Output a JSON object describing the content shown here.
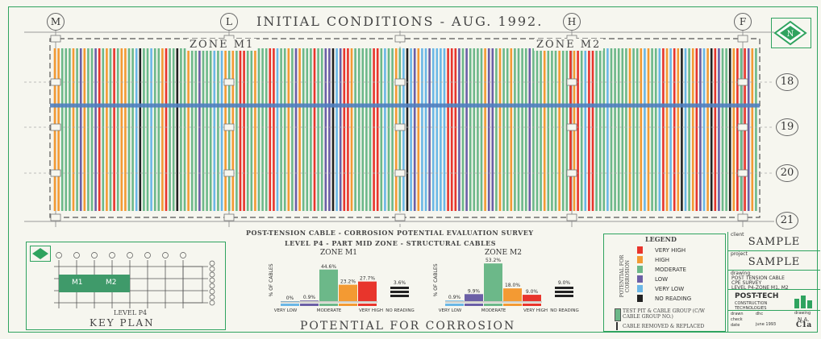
{
  "title": "INITIAL CONDITIONS - AUG. 1992.",
  "grid_columns": [
    "M",
    "L",
    "H",
    "F"
  ],
  "grid_rows": [
    "18",
    "19",
    "20",
    "21"
  ],
  "zones": [
    "ZONE M1",
    "ZONE M2"
  ],
  "survey_title_1": "POST-TENSION CABLE - CORROSION POTENTIAL EVALUATION SURVEY",
  "survey_title_2": "LEVEL P4 - PART MID ZONE - STRUCTURAL CABLES",
  "chart_footer": "POTENTIAL FOR CORROSION",
  "colors": {
    "very_high": "#e8352c",
    "high": "#f39a33",
    "moderate": "#6cb889",
    "low": "#6b5fa6",
    "very_low": "#6ab7e6",
    "no_reading": "#222222",
    "border": "#2fa35f"
  },
  "chart_data": [
    {
      "type": "bar",
      "title": "ZONE M1",
      "ylabel": "% OF CABLES",
      "series_keys": [
        "very_low",
        "low",
        "moderate",
        "high",
        "very_high",
        "no_reading"
      ],
      "values": [
        0,
        0.9,
        44.6,
        23.2,
        27.7,
        3.6
      ],
      "value_labels": [
        "0%",
        "0.9%",
        "44.6%",
        "23.2%",
        "27.7%",
        "3.6%"
      ],
      "x_labels": [
        "VERY LOW",
        "MODERATE",
        "VERY HIGH",
        "NO READING"
      ],
      "ylim": [
        0,
        60
      ]
    },
    {
      "type": "bar",
      "title": "ZONE M2",
      "ylabel": "% OF CABLES",
      "series_keys": [
        "very_low",
        "low",
        "moderate",
        "high",
        "very_high",
        "no_reading"
      ],
      "values": [
        0.9,
        9.9,
        53.2,
        18.0,
        9.0,
        9.0
      ],
      "value_labels": [
        "0.9%",
        "9.9%",
        "53.2%",
        "18.0%",
        "9.0%",
        "9.0%"
      ],
      "x_labels": [
        "VERY LOW",
        "MODERATE",
        "VERY HIGH",
        "NO READING"
      ],
      "ylim": [
        0,
        60
      ]
    }
  ],
  "legend": {
    "title": "LEGEND",
    "side_label": "POTENTIAL FOR CORROSION",
    "items": [
      {
        "key": "very_high",
        "label": "VERY HIGH"
      },
      {
        "key": "high",
        "label": "HIGH"
      },
      {
        "key": "moderate",
        "label": "MODERATE"
      },
      {
        "key": "low",
        "label": "LOW"
      },
      {
        "key": "very_low",
        "label": "VERY LOW"
      },
      {
        "key": "no_reading",
        "label": "NO READING"
      }
    ],
    "test_pit": "TEST PIT & CABLE GROUP (C/W CABLE GROUP NO.)",
    "removed": "CABLE REMOVED & REPLACED"
  },
  "key_plan": {
    "title": "KEY PLAN",
    "level": "LEVEL P4",
    "zone_labels": [
      "M1",
      "M2"
    ]
  },
  "title_block": {
    "client_label": "client",
    "client": "SAMPLE",
    "project_label": "project",
    "project": "SAMPLE",
    "drawing_label": "drawing",
    "drawing_lines": [
      "POST TENSION CABLE",
      "CPE SURVEY",
      "LEVEL P4-ZONE M1, M2"
    ],
    "company": "POST-TECH",
    "company_sub": "CONSTRUCTION TECHNOLOGIES",
    "drawn_label": "drawn",
    "drawn": "dhc",
    "checked_label": "check",
    "checked": "N.A.",
    "date_label": "date",
    "date": "june 1993",
    "drawing_no_label": "drawing",
    "drawing_no": "C1a"
  }
}
